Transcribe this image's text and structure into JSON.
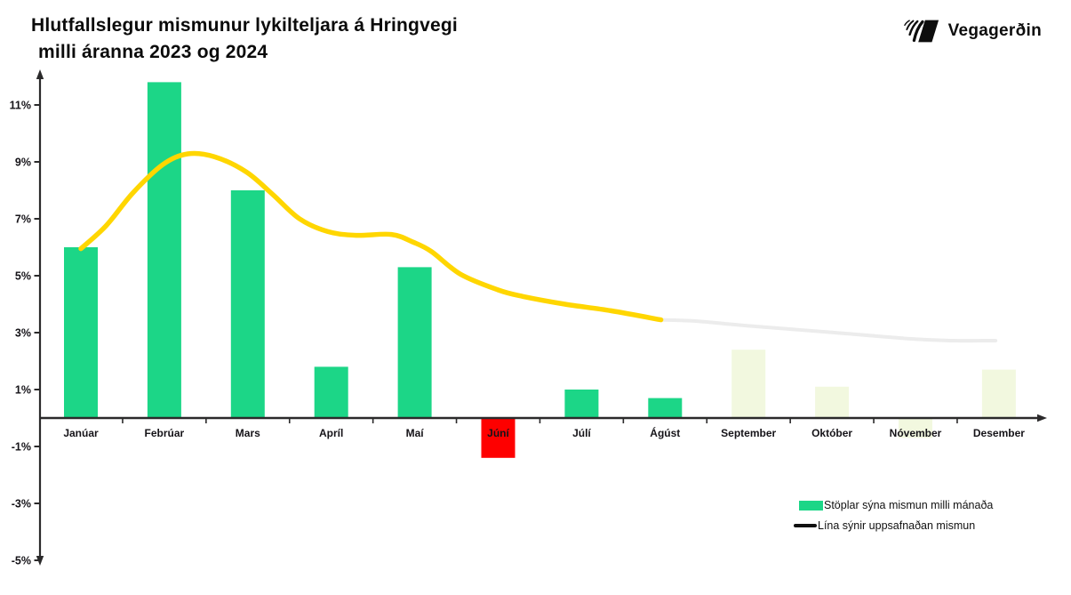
{
  "header": {
    "title_line1": "Hlutfallslegur mismunur lykilteljara á Hringvegi",
    "title_line2": "milli áranna 2023 og 2024",
    "logo_text": "Vegagerðin"
  },
  "legend": {
    "bars_label": "Stöplar sýna mismun milli mánaða",
    "line_label": "Lína sýnir uppsafnaðan mismun"
  },
  "chart_data": {
    "type": "bar",
    "title": "Hlutfallslegur mismunur lykilteljara á Hringvegi milli áranna 2023 og 2024",
    "categories": [
      "Janúar",
      "Febrúar",
      "Mars",
      "Apríl",
      "Maí",
      "Júní",
      "Júlí",
      "Ágúst",
      "September",
      "Október",
      "Nóvember",
      "Desember"
    ],
    "series": [
      {
        "name": "Stöplar sýna mismun milli mánaða",
        "type": "bar",
        "values": [
          6.0,
          11.8,
          8.0,
          1.8,
          5.3,
          -1.4,
          1.0,
          0.7,
          2.4,
          1.1,
          -0.7,
          1.7
        ]
      },
      {
        "name": "Lína sýnir uppsafnaðan mismun",
        "type": "line",
        "values": [
          6.0,
          9.1,
          8.65,
          6.55,
          6.15,
          4.5,
          4.0,
          3.45,
          3.25,
          3.0,
          2.78,
          2.72
        ]
      }
    ],
    "actual_month_count": 8,
    "cumulative_line": {
      "actual_points": [
        [
          0,
          5.95
        ],
        [
          0.3,
          6.75
        ],
        [
          0.62,
          7.9
        ],
        [
          0.98,
          8.9
        ],
        [
          1.28,
          9.28
        ],
        [
          1.6,
          9.18
        ],
        [
          1.98,
          8.65
        ],
        [
          2.3,
          7.85
        ],
        [
          2.62,
          7.0
        ],
        [
          2.96,
          6.55
        ],
        [
          3.3,
          6.42
        ],
        [
          3.72,
          6.45
        ],
        [
          3.98,
          6.18
        ],
        [
          4.2,
          5.85
        ],
        [
          4.55,
          5.05
        ],
        [
          5.0,
          4.5
        ],
        [
          5.3,
          4.27
        ],
        [
          5.8,
          4.0
        ],
        [
          6.35,
          3.77
        ],
        [
          6.95,
          3.45
        ]
      ],
      "projected_points": [
        [
          6.95,
          3.45
        ],
        [
          7.4,
          3.4
        ],
        [
          7.95,
          3.25
        ],
        [
          8.95,
          3.02
        ],
        [
          9.95,
          2.78
        ],
        [
          10.45,
          2.72
        ],
        [
          10.96,
          2.72
        ]
      ]
    },
    "y_ticks": [
      11,
      9,
      7,
      5,
      3,
      1,
      -1,
      -3,
      -5
    ],
    "y_tick_labels": [
      "11%",
      "9%",
      "7%",
      "5%",
      "3%",
      "1%",
      "-1%",
      "-3%",
      "-5%"
    ],
    "ylim": [
      -5,
      12
    ],
    "grid": false,
    "legend_position": "bottom-right",
    "colors": {
      "bar_actual": "#1CD687",
      "bar_negative": "#FE0000",
      "bar_faded": "#F2F8DF",
      "line_actual": "#FFD600",
      "line_projected": "#ECECEC",
      "axis": "#2B2A2B",
      "text": "#151318"
    }
  }
}
